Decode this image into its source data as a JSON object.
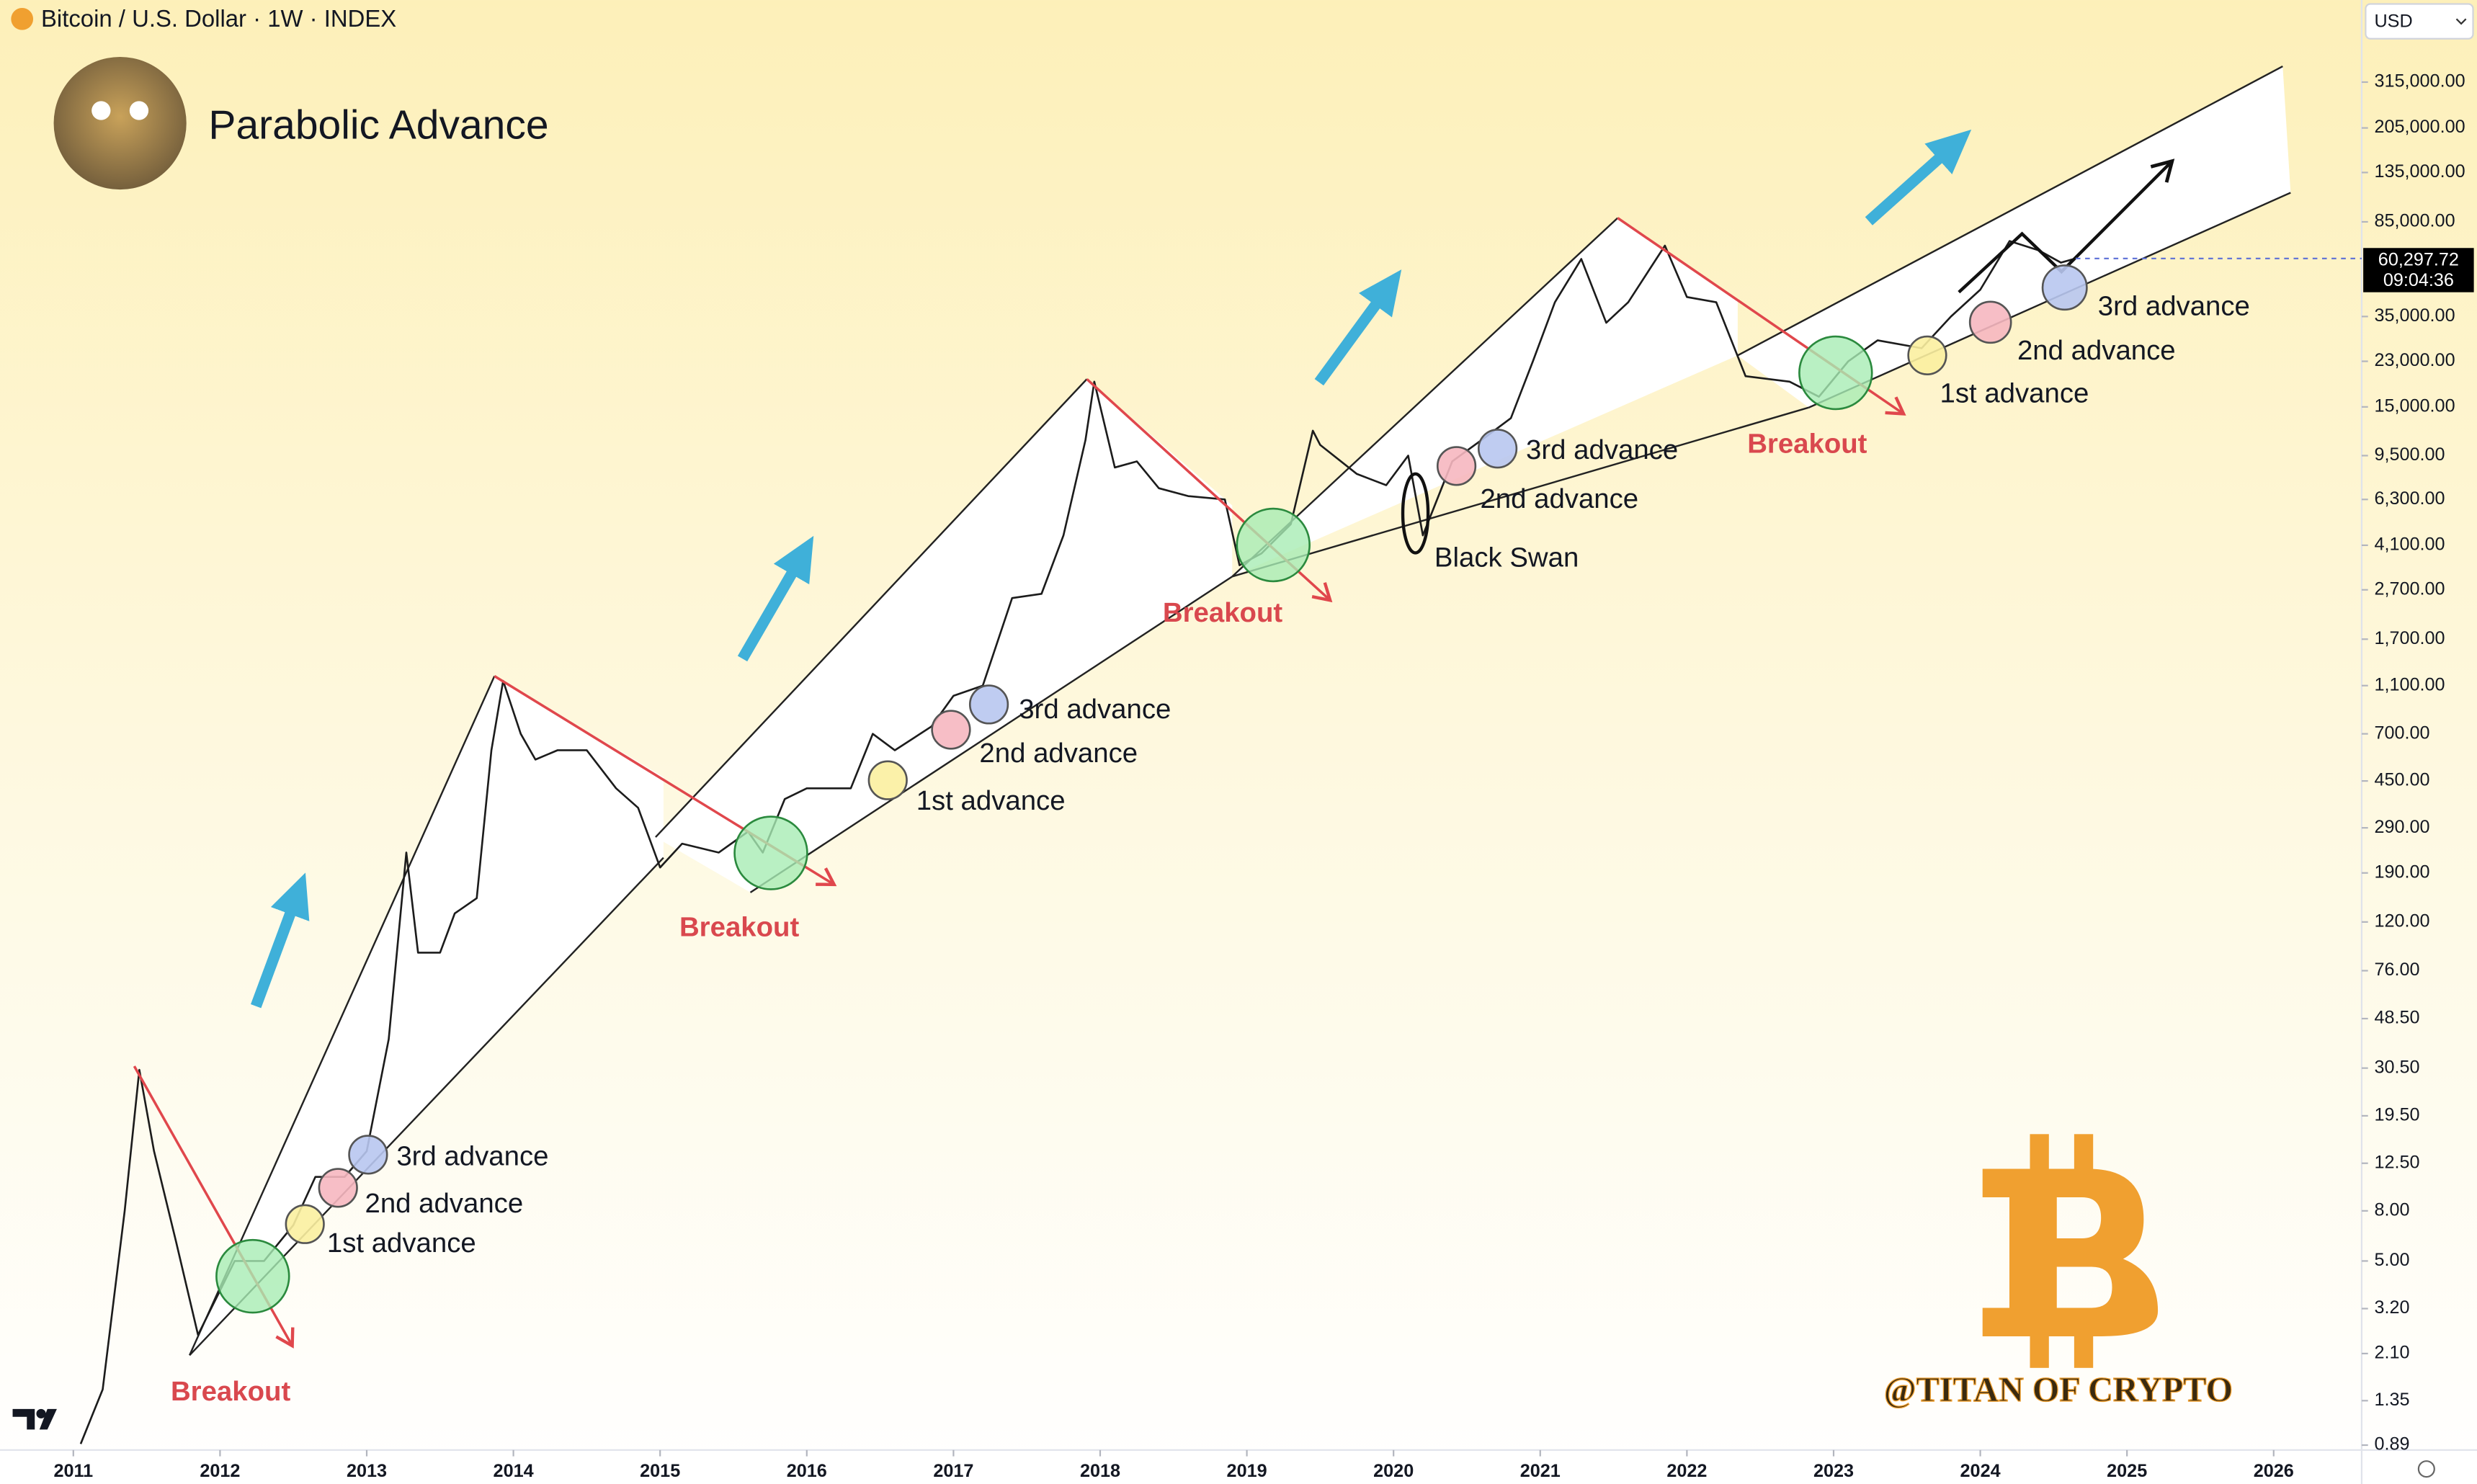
{
  "header": {
    "symbol": "Bitcoin / U.S. Dollar · 1W · INDEX",
    "currency": "USD"
  },
  "chart_data": {
    "type": "line",
    "title": "Parabolic Advance",
    "color": "#1c1c1c",
    "log_scale": true,
    "x": [
      2011.05,
      2011.2,
      2011.35,
      2011.45,
      2011.55,
      2011.7,
      2011.85,
      2011.95,
      2012.1,
      2012.3,
      2012.5,
      2012.65,
      2012.85,
      2013.0,
      2013.15,
      2013.27,
      2013.35,
      2013.5,
      2013.6,
      2013.75,
      2013.85,
      2013.93,
      2014.05,
      2014.15,
      2014.3,
      2014.5,
      2014.7,
      2014.85,
      2015.0,
      2015.15,
      2015.4,
      2015.6,
      2015.7,
      2015.85,
      2016.0,
      2016.3,
      2016.45,
      2016.6,
      2016.85,
      2017.0,
      2017.2,
      2017.4,
      2017.6,
      2017.75,
      2017.9,
      2017.96,
      2018.1,
      2018.25,
      2018.4,
      2018.6,
      2018.85,
      2018.95,
      2019.1,
      2019.3,
      2019.45,
      2019.5,
      2019.75,
      2019.95,
      2020.1,
      2020.2,
      2020.4,
      2020.6,
      2020.8,
      2020.95,
      2021.1,
      2021.28,
      2021.45,
      2021.6,
      2021.85,
      2022.0,
      2022.2,
      2022.4,
      2022.7,
      2022.9,
      2023.1,
      2023.3,
      2023.6,
      2023.8,
      2024.0,
      2024.2,
      2024.4,
      2024.55,
      2024.65
    ],
    "values": [
      0.9,
      1.5,
      8,
      30,
      14,
      6,
      2.5,
      3.3,
      5,
      5,
      7,
      11,
      11,
      14,
      40,
      230,
      90,
      90,
      130,
      150,
      600,
      1150,
      700,
      550,
      600,
      600,
      420,
      350,
      200,
      250,
      230,
      280,
      230,
      380,
      420,
      420,
      700,
      600,
      750,
      1000,
      1100,
      2500,
      2600,
      4500,
      11000,
      19000,
      8500,
      9000,
      7000,
      6500,
      6300,
      3400,
      3800,
      5000,
      12000,
      10500,
      8000,
      7200,
      9500,
      4500,
      9000,
      11000,
      13500,
      23000,
      40000,
      60000,
      33000,
      40000,
      68000,
      42000,
      40000,
      20000,
      19000,
      16500,
      23000,
      28000,
      26000,
      35000,
      45000,
      71000,
      65000,
      58000,
      60297.72
    ],
    "xlim": [
      2010.5,
      2026.6
    ],
    "xticks": [
      2011,
      2012,
      2013,
      2014,
      2015,
      2016,
      2017,
      2018,
      2019,
      2020,
      2021,
      2022,
      2023,
      2024,
      2025,
      2026
    ],
    "ylim": [
      0.85,
      680000
    ],
    "yticks": [
      {
        "value": 0.89,
        "label": "0.89"
      },
      {
        "value": 1.35,
        "label": "1.35"
      },
      {
        "value": 2.1,
        "label": "2.10"
      },
      {
        "value": 3.2,
        "label": "3.20"
      },
      {
        "value": 5,
        "label": "5.00"
      },
      {
        "value": 8,
        "label": "8.00"
      },
      {
        "value": 12.5,
        "label": "12.50"
      },
      {
        "value": 19.5,
        "label": "19.50"
      },
      {
        "value": 30.5,
        "label": "30.50"
      },
      {
        "value": 48.5,
        "label": "48.50"
      },
      {
        "value": 76,
        "label": "76.00"
      },
      {
        "value": 120,
        "label": "120.00"
      },
      {
        "value": 190,
        "label": "190.00"
      },
      {
        "value": 290,
        "label": "290.00"
      },
      {
        "value": 450,
        "label": "450.00"
      },
      {
        "value": 700,
        "label": "700.00"
      },
      {
        "value": 1100,
        "label": "1,100.00"
      },
      {
        "value": 1700,
        "label": "1,700.00"
      },
      {
        "value": 2700,
        "label": "2,700.00"
      },
      {
        "value": 4100,
        "label": "4,100.00"
      },
      {
        "value": 6300,
        "label": "6,300.00"
      },
      {
        "value": 9500,
        "label": "9,500.00"
      },
      {
        "value": 15000,
        "label": "15,000.00"
      },
      {
        "value": 23000,
        "label": "23,000.00"
      },
      {
        "value": 35000,
        "label": "35,000.00"
      },
      {
        "value": 85000,
        "label": "85,000.00"
      },
      {
        "value": 135000,
        "label": "135,000.00"
      },
      {
        "value": 205000,
        "label": "205,000.00"
      },
      {
        "value": 315000,
        "label": "315,000.00"
      }
    ],
    "price_label": {
      "value": 60297.72,
      "label": "60,297.72",
      "countdown": "09:04:36"
    },
    "annotations": [
      "3rd advance",
      "2nd advance",
      "1st advance",
      "3rd advance",
      "2nd advance",
      "1st advance",
      "3rd advance",
      "2nd advance",
      "Black Swan",
      "3rd advance",
      "2nd advance",
      "1st advance",
      "Breakout",
      "Breakout",
      "Breakout",
      "Breakout"
    ],
    "watermark": "@TITAN OF CRYPTO"
  }
}
